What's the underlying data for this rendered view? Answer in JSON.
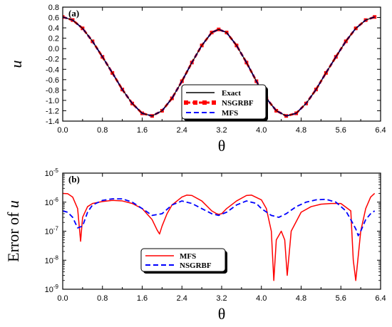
{
  "chart_data": [
    {
      "type": "line",
      "panel_label": "(a)",
      "xlabel": "θ",
      "ylabel": "u",
      "xlim": [
        0,
        6.4
      ],
      "ylim": [
        -1.4,
        0.8
      ],
      "xticks": [
        "0.0",
        "0.8",
        "1.6",
        "2.4",
        "3.2",
        "4.0",
        "4.8",
        "5.6",
        "6.4"
      ],
      "yticks": [
        "0.8",
        "0.6",
        "0.4",
        "0.2",
        "0.0",
        "-0.2",
        "-0.4",
        "-0.6",
        "-0.8",
        "-1.0",
        "-1.2",
        "-1.4"
      ],
      "legend_position": "lower-center",
      "colors": {
        "Exact": "#000000",
        "NSGRBF": "#ff0000",
        "MFS": "#0000ff"
      },
      "series": [
        {
          "name": "Exact",
          "style": "solid",
          "x": [
            0.0,
            0.2,
            0.4,
            0.6,
            0.8,
            1.0,
            1.2,
            1.4,
            1.6,
            1.8,
            2.0,
            2.2,
            2.4,
            2.6,
            2.8,
            3.0,
            3.14,
            3.3,
            3.5,
            3.7,
            3.9,
            4.1,
            4.3,
            4.5,
            4.7,
            4.9,
            5.1,
            5.3,
            5.5,
            5.7,
            5.9,
            6.1,
            6.28
          ],
          "y": [
            0.61,
            0.55,
            0.39,
            0.14,
            -0.16,
            -0.47,
            -0.79,
            -1.06,
            -1.25,
            -1.3,
            -1.2,
            -0.96,
            -0.63,
            -0.27,
            0.06,
            0.31,
            0.37,
            0.31,
            0.06,
            -0.27,
            -0.63,
            -0.96,
            -1.2,
            -1.3,
            -1.25,
            -1.06,
            -0.79,
            -0.47,
            -0.16,
            0.14,
            0.39,
            0.55,
            0.61
          ]
        },
        {
          "name": "NSGRBF",
          "style": "dash-square",
          "x": [
            0.0,
            0.2,
            0.4,
            0.6,
            0.8,
            1.0,
            1.2,
            1.4,
            1.6,
            1.8,
            2.0,
            2.2,
            2.4,
            2.6,
            2.8,
            3.0,
            3.14,
            3.3,
            3.5,
            3.7,
            3.9,
            4.1,
            4.3,
            4.5,
            4.7,
            4.9,
            5.1,
            5.3,
            5.5,
            5.7,
            5.9,
            6.1,
            6.28
          ],
          "y": [
            0.61,
            0.55,
            0.39,
            0.14,
            -0.16,
            -0.47,
            -0.79,
            -1.06,
            -1.25,
            -1.3,
            -1.2,
            -0.96,
            -0.63,
            -0.27,
            0.06,
            0.31,
            0.37,
            0.31,
            0.06,
            -0.27,
            -0.63,
            -0.96,
            -1.2,
            -1.3,
            -1.25,
            -1.06,
            -0.79,
            -0.47,
            -0.16,
            0.14,
            0.39,
            0.55,
            0.61
          ]
        },
        {
          "name": "MFS",
          "style": "dashed",
          "x": [
            0.0,
            0.2,
            0.4,
            0.6,
            0.8,
            1.0,
            1.2,
            1.4,
            1.6,
            1.8,
            2.0,
            2.2,
            2.4,
            2.6,
            2.8,
            3.0,
            3.14,
            3.3,
            3.5,
            3.7,
            3.9,
            4.1,
            4.3,
            4.5,
            4.7,
            4.9,
            5.1,
            5.3,
            5.5,
            5.7,
            5.9,
            6.1,
            6.28
          ],
          "y": [
            0.61,
            0.55,
            0.39,
            0.14,
            -0.16,
            -0.47,
            -0.79,
            -1.06,
            -1.25,
            -1.3,
            -1.2,
            -0.96,
            -0.63,
            -0.27,
            0.06,
            0.31,
            0.37,
            0.31,
            0.06,
            -0.27,
            -0.63,
            -0.96,
            -1.2,
            -1.3,
            -1.25,
            -1.06,
            -0.79,
            -0.47,
            -0.16,
            0.14,
            0.39,
            0.55,
            0.61
          ]
        }
      ]
    },
    {
      "type": "line",
      "panel_label": "(b)",
      "xlabel": "θ",
      "ylabel_main": "Error of ",
      "ylabel_var": "u",
      "xlim": [
        0,
        6.4
      ],
      "ylim": [
        1e-09,
        1e-05
      ],
      "y_scale": "log",
      "xticks": [
        "0.0",
        "0.8",
        "1.6",
        "2.4",
        "3.2",
        "4.0",
        "4.8",
        "5.6",
        "6.4"
      ],
      "yticks": [
        {
          "value": 1e-05,
          "base": "10",
          "exp": "-5"
        },
        {
          "value": 1e-06,
          "base": "10",
          "exp": "-6"
        },
        {
          "value": 1e-07,
          "base": "10",
          "exp": "-7"
        },
        {
          "value": 1e-08,
          "base": "10",
          "exp": "-8"
        },
        {
          "value": 1e-09,
          "base": "10",
          "exp": "-9"
        }
      ],
      "legend_position": "lower-center",
      "colors": {
        "MFS": "#ff0000",
        "NSGRBF": "#0000ff"
      },
      "series": [
        {
          "name": "MFS",
          "style": "solid",
          "x": [
            0.0,
            0.1,
            0.2,
            0.3,
            0.36,
            0.4,
            0.5,
            0.6,
            0.8,
            1.0,
            1.2,
            1.4,
            1.6,
            1.8,
            1.9,
            1.95,
            2.0,
            2.1,
            2.2,
            2.4,
            2.5,
            2.6,
            2.8,
            3.0,
            3.1,
            3.14,
            3.2,
            3.3,
            3.5,
            3.7,
            3.8,
            4.0,
            4.1,
            4.2,
            4.25,
            4.3,
            4.4,
            4.47,
            4.52,
            4.6,
            4.8,
            5.0,
            5.2,
            5.4,
            5.6,
            5.8,
            5.85,
            5.9,
            6.0,
            6.1,
            6.2,
            6.28
          ],
          "y": [
            2e-06,
            1.95e-06,
            1.5e-06,
            6e-07,
            4.5e-08,
            3e-07,
            7e-07,
            9e-07,
            1.05e-06,
            1.15e-06,
            1.1e-06,
            9e-07,
            6e-07,
            2.5e-07,
            1.1e-07,
            8e-08,
            1.5e-07,
            4e-07,
            8e-07,
            1.5e-06,
            1.75e-06,
            1.7e-06,
            1.1e-06,
            5e-07,
            4e-07,
            3.8e-07,
            4e-07,
            6e-07,
            1.1e-06,
            1.7e-06,
            1.75e-06,
            1.2e-06,
            6e-07,
            1e-07,
            2e-09,
            5e-08,
            1e-07,
            5e-08,
            3e-09,
            1e-07,
            4.5e-07,
            7e-07,
            8.5e-07,
            9e-07,
            9e-07,
            5e-07,
            1e-08,
            2e-09,
            1e-07,
            6e-07,
            1.5e-06,
            2e-06
          ]
        },
        {
          "name": "NSGRBF",
          "style": "dashed",
          "x": [
            0.0,
            0.1,
            0.2,
            0.3,
            0.4,
            0.5,
            0.6,
            0.8,
            1.0,
            1.2,
            1.4,
            1.6,
            1.8,
            2.0,
            2.2,
            2.4,
            2.6,
            2.8,
            3.0,
            3.14,
            3.3,
            3.5,
            3.7,
            3.9,
            4.0,
            4.2,
            4.35,
            4.5,
            4.7,
            4.9,
            5.1,
            5.3,
            5.5,
            5.7,
            5.8,
            5.9,
            5.95,
            6.0,
            6.1,
            6.2,
            6.28
          ],
          "y": [
            5e-07,
            4.5e-07,
            3e-07,
            1.3e-07,
            1.5e-07,
            4.5e-07,
            8e-07,
            1.15e-06,
            1.3e-06,
            1.3e-06,
            1e-06,
            6e-07,
            3.5e-07,
            4e-07,
            8e-07,
            1.1e-06,
            9e-07,
            6e-07,
            4e-07,
            3.5e-07,
            4.5e-07,
            8e-07,
            1.1e-06,
            9e-07,
            6e-07,
            3.5e-07,
            3e-07,
            4e-07,
            7e-07,
            1e-06,
            1.2e-06,
            1.25e-06,
            1e-06,
            5e-07,
            2.5e-07,
            1.2e-07,
            7e-08,
            1e-07,
            2.5e-07,
            4e-07,
            5e-07
          ]
        }
      ]
    }
  ]
}
